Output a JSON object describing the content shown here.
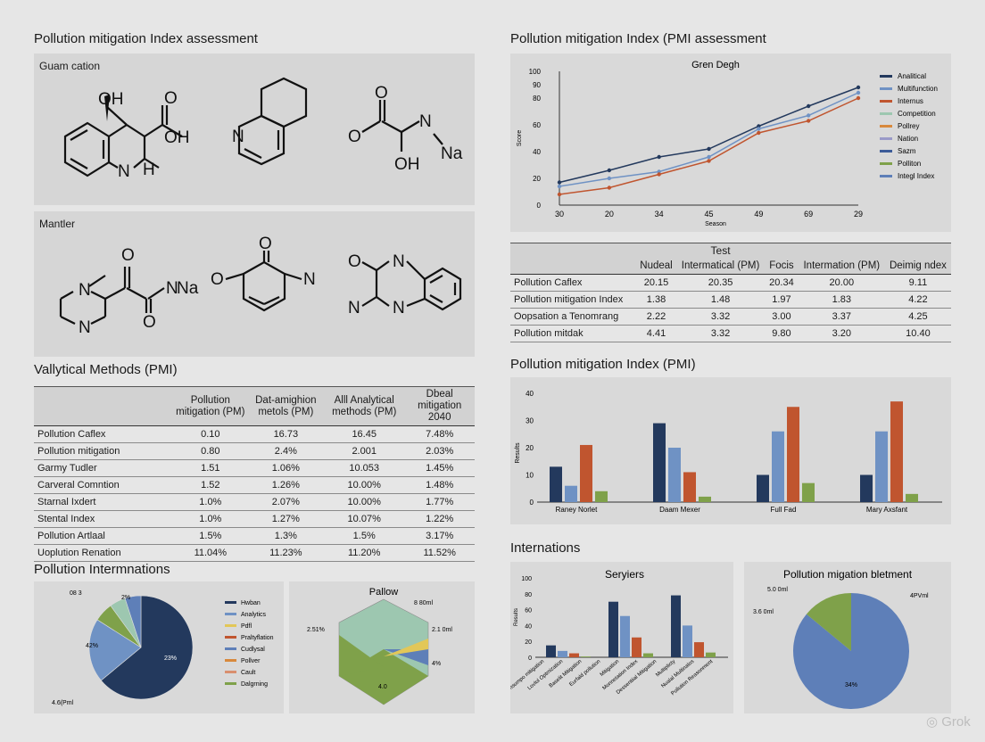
{
  "left_title": "Pollution mitigation Index assessment",
  "right_title": "Pollution mitigation Index (PMI assessment",
  "structures": {
    "panel1_label": "Guam cation",
    "panel2_label": "Mantler",
    "atoms": {
      "oh": "OH",
      "o": "O",
      "n": "N",
      "h": "H",
      "na": "Na"
    }
  },
  "line_chart": {
    "title": "Gren Degh",
    "xlabel": "Season",
    "ylabel": "Score",
    "ytick_labels": [
      "0",
      "20",
      "40",
      "60",
      "80",
      "90",
      "100"
    ],
    "xtick_labels": [
      "30",
      "20",
      "34",
      "45",
      "49",
      "69",
      "29"
    ],
    "legend": [
      "Analitical",
      "Multifunction",
      "Internus",
      "Competition",
      "Pollrey",
      "Nation",
      "Sazm",
      "Polliton",
      "Integl Index"
    ],
    "colors": [
      "#23395d",
      "#6f92c4",
      "#c0552f",
      "#9dc7b0",
      "#d8893c",
      "#9a9ac8",
      "#3c5b98",
      "#7fa14a",
      "#5e7fb8"
    ]
  },
  "top_table": {
    "header_top": "Test",
    "headers": [
      "Nudeal",
      "Intermatical (PM)",
      "Focis",
      "Intermation (PM)",
      "Deimig ndex"
    ],
    "rows": [
      {
        "label": "Pollution Caflex",
        "values": [
          "20.15",
          "20.35",
          "20.34",
          "20.00",
          "9.11"
        ]
      },
      {
        "label": "Pollution mitigation Index",
        "values": [
          "1.38",
          "1.48",
          "1.97",
          "1.83",
          "4.22"
        ]
      },
      {
        "label": "Oopsation a Tenomrang",
        "values": [
          "2.22",
          "3.32",
          "3.00",
          "3.37",
          "4.25"
        ]
      },
      {
        "label": "Pollution mitdak",
        "values": [
          "4.41",
          "3.32",
          "9.80",
          "3.20",
          "10.40"
        ]
      }
    ]
  },
  "bar_chart_title": "Pollution mitigation Index (PMI)",
  "bar_chart": {
    "ylabel": "Results",
    "ytick_labels": [
      "0",
      "10",
      "20",
      "30",
      "40"
    ],
    "categories": [
      "Raney Norlet",
      "Daam Mexer",
      "Full Fad",
      "Mary Axsfant"
    ],
    "colors": [
      "#23395d",
      "#6f92c4",
      "#c0552f",
      "#7fa14a"
    ]
  },
  "left_table": {
    "title": "Vallytical Methods (PMI)",
    "headers": [
      "Pollution mitigation (PM)",
      "Dat-amighion metols (PM)",
      "Alll Analytical methods (PM)",
      "Dbeal mitigation 2040"
    ],
    "rows": [
      {
        "label": "Pollution Caflex",
        "values": [
          "0.10",
          "16.73",
          "16.45",
          "7.48%"
        ]
      },
      {
        "label": "Pollution mitigation",
        "values": [
          "0.80",
          "2.4%",
          "2.001",
          "2.03%"
        ]
      },
      {
        "label": "Garmy Tudler",
        "values": [
          "1.51",
          "1.06%",
          "10.053",
          "1.45%"
        ]
      },
      {
        "label": "Carveral Comntion",
        "values": [
          "1.52",
          "1.26%",
          "10.00%",
          "1.48%"
        ]
      },
      {
        "label": "Starnal Ixdert",
        "values": [
          "1.0%",
          "2.07%",
          "10.00%",
          "1.77%"
        ]
      },
      {
        "label": "Stental Index",
        "values": [
          "1.0%",
          "1.27%",
          "10.07%",
          "1.22%"
        ]
      },
      {
        "label": "Pollution Artlaal",
        "values": [
          "1.5%",
          "1.3%",
          "1.5%",
          "3.17%"
        ]
      },
      {
        "label": "Uoplution Renation",
        "values": [
          "11.04%",
          "11.23%",
          "11.20%",
          "11.52%"
        ]
      }
    ]
  },
  "interactions_title": "Pollution Intermnations",
  "pie1": {
    "labels": {
      "top": "08 3",
      "mid": "42%",
      "big": "23%",
      "bottom": "4.6(Pml",
      "small": "2%"
    },
    "legend": [
      "Hwban",
      "Analytics",
      "Pdfl",
      "Praltyflation",
      "Cudlysal",
      "Pollver",
      "Cault",
      "Dalgrning"
    ],
    "colors": [
      "#23395d",
      "#6f92c4",
      "#e2c758",
      "#c0552f",
      "#5e7fb8",
      "#d8893c",
      "#d98f6e",
      "#7fa14a"
    ]
  },
  "hex_chart": {
    "title": "Pallow",
    "labels": {
      "tr": "8 80ml",
      "left": "2.51%",
      "right": "2.1 0ml",
      "rsmall": "4%",
      "bottom": "4.0"
    }
  },
  "right_small_title": "Internations",
  "small_bar": {
    "title": "Seryiers",
    "ylabel": "Results",
    "ytick_labels": [
      "0",
      "20",
      "40",
      "60",
      "80",
      "100"
    ],
    "xtick_labels": [
      "Comsumpo mitigation",
      "Lovlol Optmization",
      "Baselit Mitigation",
      "Eurfald pollution",
      "Mitigation",
      "Monnetation Index",
      "Dessentiial Mitigation",
      "Multiplicty",
      "Nualal Multinalos",
      "Pollution Reasonment"
    ]
  },
  "pie2": {
    "title": "Pollution migation bletment",
    "labels": {
      "tl": "5.0 0ml",
      "left": "3.6 0ml",
      "right": "4PVml",
      "big": "34%"
    },
    "colors": [
      "#5e7fb8",
      "#7fa14a"
    ]
  },
  "watermark": "Grok"
}
